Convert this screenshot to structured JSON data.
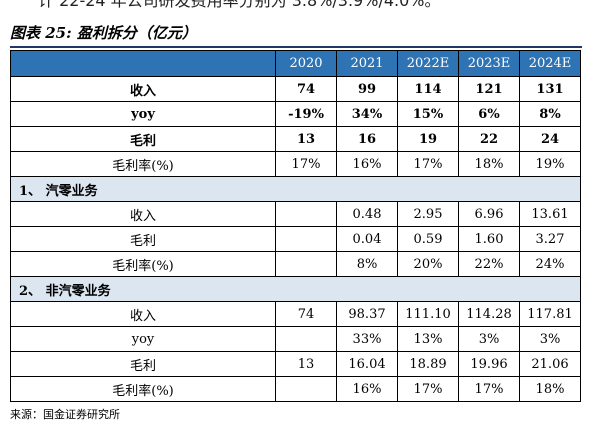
{
  "top_text": "计 22-24 年公司研发费用率分别为 3.8%/3.9%/4.0%。",
  "title": "图表 25: 盈利拆分（亿元）",
  "columns": [
    "",
    "2020",
    "2021",
    "2022E",
    "2023E",
    "2024E"
  ],
  "total": [
    {
      "label": "收入",
      "values": [
        "74",
        "99",
        "114",
        "121",
        "131"
      ],
      "bold": true
    },
    {
      "label": "yoy",
      "values": [
        "-19%",
        "34%",
        "15%",
        "6%",
        "8%"
      ],
      "bold": true
    },
    {
      "label": "毛利",
      "values": [
        "13",
        "16",
        "19",
        "22",
        "24"
      ],
      "bold": true
    },
    {
      "label": "毛利率(%)",
      "values": [
        "17%",
        "16%",
        "17%",
        "18%",
        "19%"
      ],
      "bold": false
    }
  ],
  "sections": [
    {
      "title": "1、 汽零业务",
      "rows": [
        {
          "label": "收入",
          "values": [
            "",
            "0.48",
            "2.95",
            "6.96",
            "13.61"
          ]
        },
        {
          "label": "毛利",
          "values": [
            "",
            "0.04",
            "0.59",
            "1.60",
            "3.27"
          ]
        },
        {
          "label": "毛利率(%)",
          "values": [
            "",
            "8%",
            "20%",
            "22%",
            "24%"
          ]
        }
      ]
    },
    {
      "title": "2、 非汽零业务",
      "rows": [
        {
          "label": "收入",
          "values": [
            "74",
            "98.37",
            "111.10",
            "114.28",
            "117.81"
          ]
        },
        {
          "label": "yoy",
          "values": [
            "",
            "33%",
            "13%",
            "3%",
            "3%"
          ]
        },
        {
          "label": "毛利",
          "values": [
            "13",
            "16.04",
            "18.89",
            "19.96",
            "21.06"
          ]
        },
        {
          "label": "毛利率(%)",
          "values": [
            "",
            "16%",
            "17%",
            "17%",
            "18%"
          ]
        }
      ]
    }
  ],
  "source": "来源：国金证券研究所"
}
